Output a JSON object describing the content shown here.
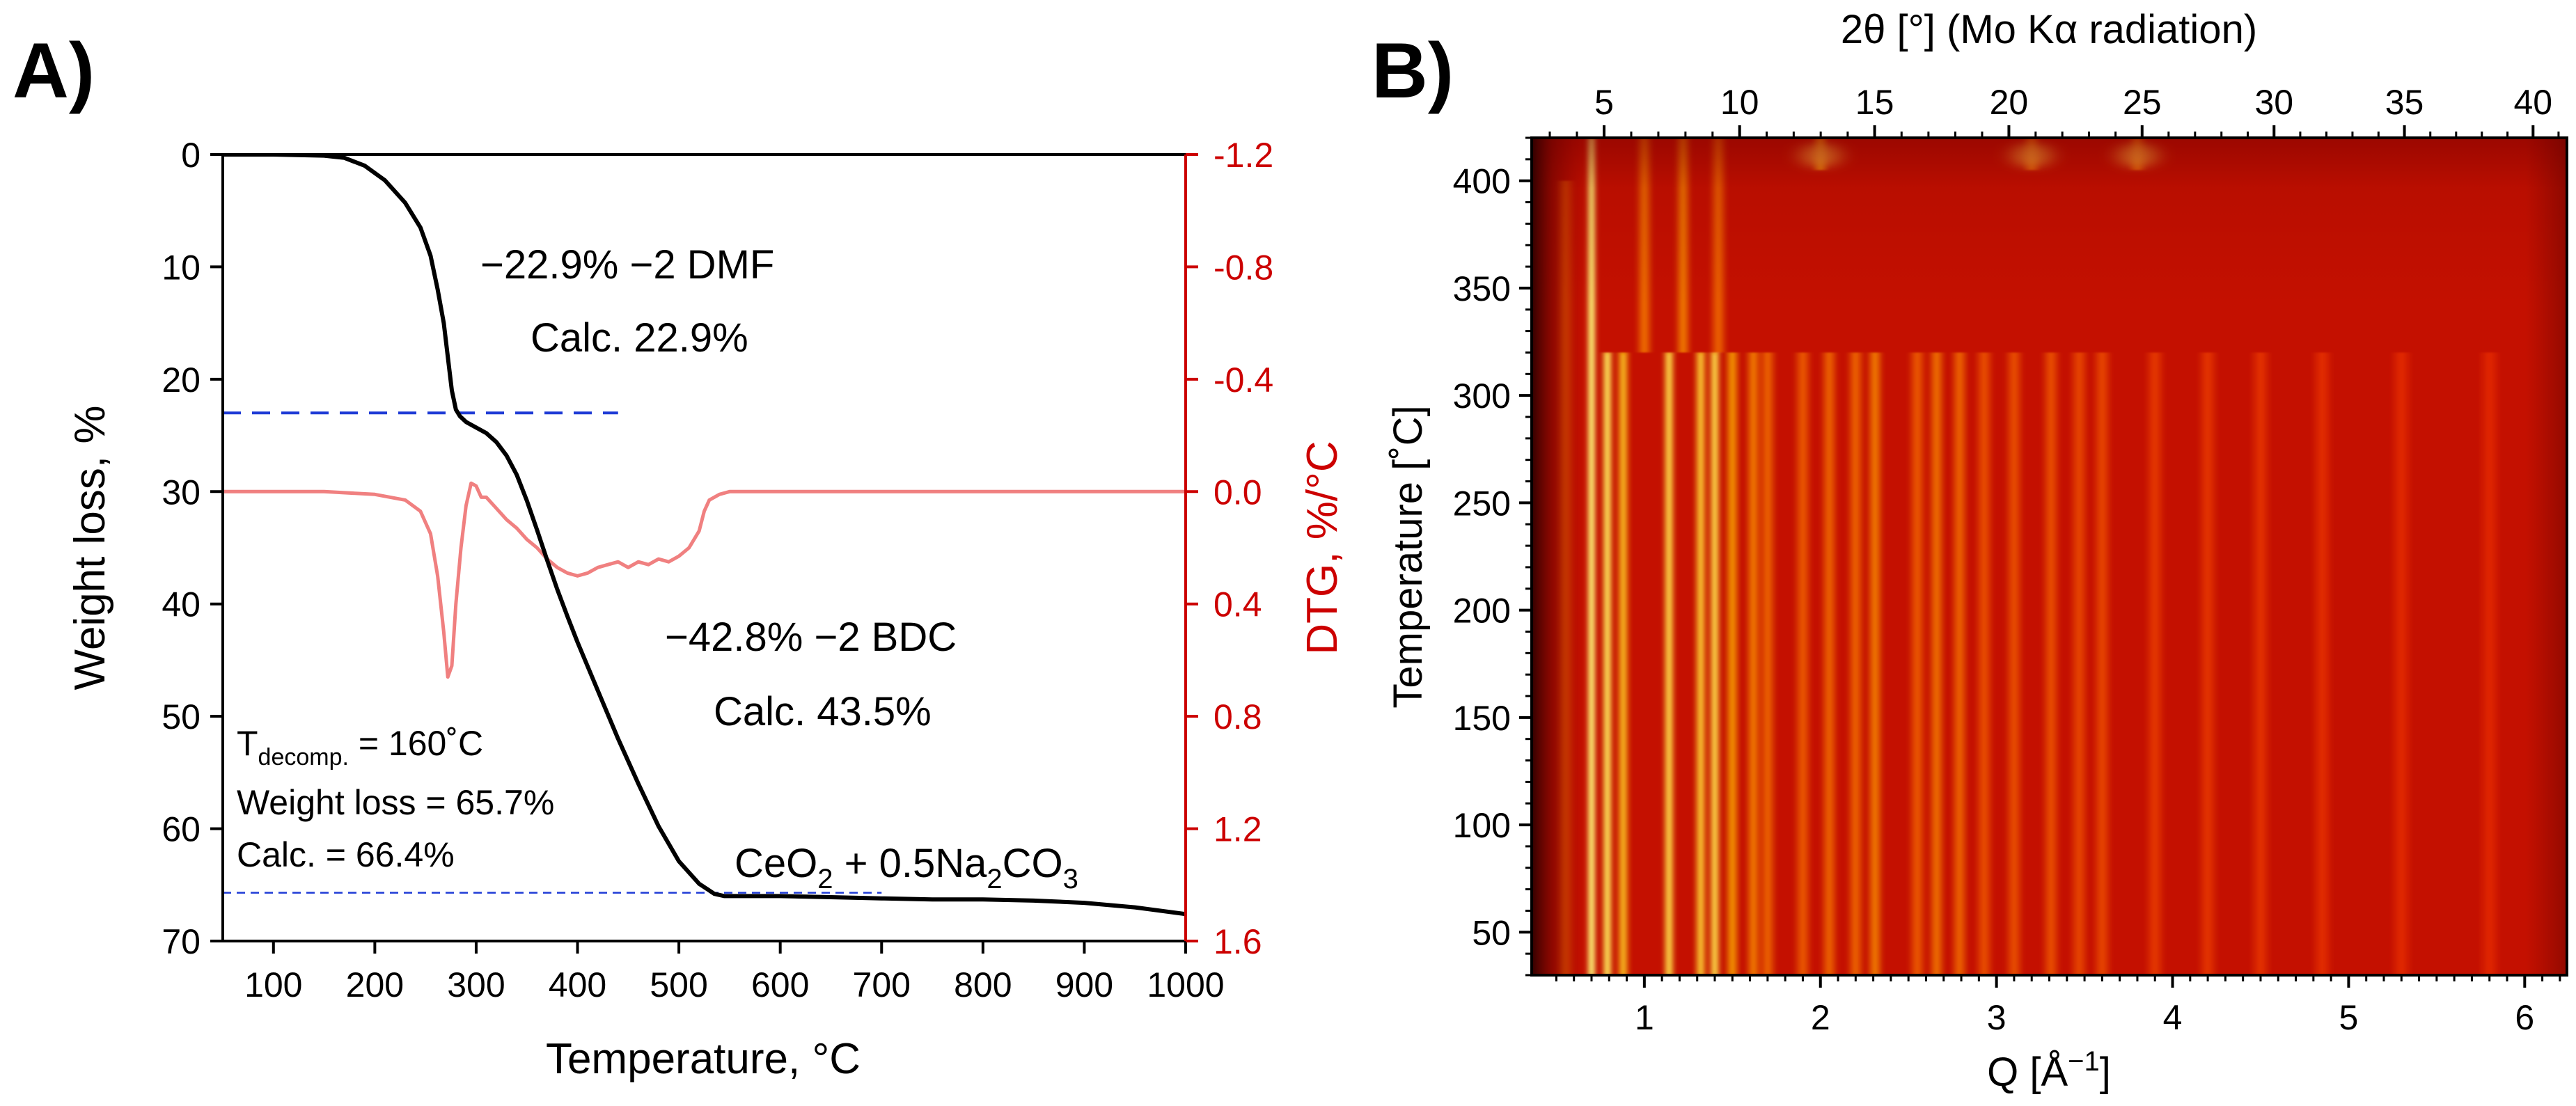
{
  "colors": {
    "axis": "#000000",
    "dtg_axis": "#cc0000",
    "tga_curve": "#000000",
    "dtg_curve": "#f08080",
    "guide_line": "#1f3bd6",
    "heatmap_base": "#c41000",
    "heatmap_dark": "#5a0000",
    "heatmap_hot": "#ffee55"
  },
  "panels": {
    "a_label": "A)",
    "b_label": "B)"
  },
  "chart_data": [
    {
      "type": "line",
      "panel": "A",
      "xlabel": "Temperature, °C",
      "ylabel": "Weight loss, %",
      "y2label": "DTG, %/°C",
      "xlim": [
        50,
        1000
      ],
      "ylim": [
        0,
        70
      ],
      "y_inverted": true,
      "y2lim": [
        -1.2,
        1.6
      ],
      "x_ticks": [
        100,
        200,
        300,
        400,
        500,
        600,
        700,
        800,
        900,
        1000
      ],
      "y_ticks": [
        0,
        10,
        20,
        30,
        40,
        50,
        60,
        70
      ],
      "y2_ticks": [
        -1.2,
        -0.8,
        -0.4,
        0.0,
        0.4,
        0.8,
        1.2,
        1.6
      ],
      "y2_tick_labels": [
        "-1.2",
        "-0.8",
        "-0.4",
        "0.0",
        "0.4",
        "0.8",
        "1.2",
        "1.6"
      ],
      "guide_lines": [
        {
          "y": 0,
          "x_from": 50,
          "x_to": 440,
          "style": "dashed"
        },
        {
          "y": 23,
          "x_from": 50,
          "x_to": 440,
          "style": "dashed"
        },
        {
          "y": 65.7,
          "x_from": 50,
          "x_to": 700,
          "style": "dashed-fine"
        }
      ],
      "series": [
        {
          "name": "TGA",
          "axis": "left",
          "x": [
            50,
            100,
            150,
            170,
            190,
            210,
            230,
            245,
            255,
            262,
            268,
            272,
            276,
            280,
            284,
            290,
            300,
            310,
            320,
            330,
            340,
            350,
            360,
            370,
            380,
            390,
            400,
            420,
            440,
            460,
            480,
            500,
            520,
            535,
            545,
            560,
            600,
            650,
            700,
            750,
            800,
            850,
            900,
            950,
            1000
          ],
          "y": [
            0,
            0,
            0.1,
            0.3,
            1,
            2.3,
            4.3,
            6.5,
            9,
            12,
            15,
            18,
            21,
            22.7,
            23.3,
            23.8,
            24.3,
            24.8,
            25.6,
            26.8,
            28.5,
            30.8,
            33.4,
            36.1,
            38.7,
            41.1,
            43.4,
            47.7,
            52,
            56,
            59.8,
            62.9,
            64.9,
            65.8,
            66.0,
            66.0,
            66.0,
            66.1,
            66.2,
            66.3,
            66.3,
            66.4,
            66.6,
            67.0,
            67.6
          ]
        },
        {
          "name": "DTG",
          "axis": "right",
          "x": [
            50,
            100,
            150,
            200,
            230,
            245,
            255,
            262,
            268,
            272,
            276,
            280,
            285,
            290,
            295,
            300,
            305,
            310,
            320,
            330,
            340,
            350,
            360,
            370,
            380,
            390,
            400,
            410,
            420,
            430,
            440,
            450,
            460,
            470,
            480,
            490,
            500,
            510,
            520,
            525,
            530,
            540,
            550,
            600,
            650,
            700,
            750,
            800,
            850,
            900,
            950,
            1000
          ],
          "y": [
            0.0,
            0.0,
            0.0,
            0.01,
            0.03,
            0.07,
            0.15,
            0.3,
            0.5,
            0.66,
            0.62,
            0.4,
            0.2,
            0.05,
            -0.03,
            -0.02,
            0.02,
            0.02,
            0.06,
            0.1,
            0.13,
            0.17,
            0.2,
            0.24,
            0.27,
            0.29,
            0.3,
            0.29,
            0.27,
            0.26,
            0.25,
            0.27,
            0.25,
            0.26,
            0.24,
            0.25,
            0.23,
            0.2,
            0.14,
            0.07,
            0.03,
            0.01,
            0.0,
            0.0,
            0.0,
            0.0,
            0.0,
            0.0,
            0.0,
            0.0,
            0.0,
            0.0
          ]
        }
      ],
      "annotations": {
        "dmf_loss": "−22.9%  −2 DMF",
        "dmf_calc": "Calc. 22.9%",
        "bdc_loss": "−42.8% −2 BDC",
        "bdc_calc": "Calc. 43.5%",
        "t_decomp_prefix": "T",
        "t_decomp_sub": "decomp.",
        "t_decomp_value": " = 160˚C",
        "weight_loss": "Weight loss = 65.7%",
        "calc_total": "Calc. = 66.4%",
        "residue_part1": "CeO",
        "residue_sub1": "2",
        "residue_part2": " + 0.5Na",
        "residue_sub2": "2",
        "residue_part3": "CO",
        "residue_sub3": "3"
      }
    },
    {
      "type": "heatmap",
      "panel": "B",
      "title_top": "2θ [°] (Mo Kα radiation)",
      "xlabel_parts": [
        "Q [Å",
        "−1",
        "]"
      ],
      "ylabel": "Temperature [˚C]",
      "xlim": [
        0.36,
        6.24
      ],
      "ylim": [
        30,
        420
      ],
      "x_ticks": [
        1,
        2,
        3,
        4,
        5,
        6
      ],
      "y_ticks": [
        50,
        100,
        150,
        200,
        250,
        300,
        350,
        400
      ],
      "top_ticks": [
        5,
        10,
        15,
        20,
        25,
        30,
        35,
        40
      ],
      "wavelength_A": 0.7107,
      "transition_temperature": 320,
      "background_top_band_from": 400,
      "peaks": [
        {
          "q": 0.55,
          "intensity": 0.35,
          "t_max": 400
        },
        {
          "q": 0.7,
          "intensity": 1.0,
          "t_max": 420
        },
        {
          "q": 0.79,
          "intensity": 0.9,
          "t_max": 320
        },
        {
          "q": 0.88,
          "intensity": 0.75,
          "t_max": 320
        },
        {
          "q": 1.14,
          "intensity": 0.85,
          "t_max": 320
        },
        {
          "q": 1.32,
          "intensity": 0.8,
          "t_max": 320
        },
        {
          "q": 1.4,
          "intensity": 0.85,
          "t_max": 320
        },
        {
          "q": 1.5,
          "intensity": 0.65,
          "t_max": 320
        },
        {
          "q": 1.62,
          "intensity": 0.55,
          "t_max": 320
        },
        {
          "q": 1.7,
          "intensity": 0.45,
          "t_max": 320
        },
        {
          "q": 1.9,
          "intensity": 0.4,
          "t_max": 320
        },
        {
          "q": 2.05,
          "intensity": 0.45,
          "t_max": 320
        },
        {
          "q": 2.2,
          "intensity": 0.45,
          "t_max": 320
        },
        {
          "q": 2.31,
          "intensity": 0.55,
          "t_max": 320
        },
        {
          "q": 2.55,
          "intensity": 0.4,
          "t_max": 320
        },
        {
          "q": 2.66,
          "intensity": 0.5,
          "t_max": 320
        },
        {
          "q": 2.79,
          "intensity": 0.45,
          "t_max": 320
        },
        {
          "q": 2.93,
          "intensity": 0.35,
          "t_max": 320
        },
        {
          "q": 3.1,
          "intensity": 0.35,
          "t_max": 320
        },
        {
          "q": 3.31,
          "intensity": 0.35,
          "t_max": 320
        },
        {
          "q": 3.47,
          "intensity": 0.3,
          "t_max": 320
        },
        {
          "q": 3.6,
          "intensity": 0.3,
          "t_max": 320
        },
        {
          "q": 3.9,
          "intensity": 0.22,
          "t_max": 320
        },
        {
          "q": 4.2,
          "intensity": 0.2,
          "t_max": 320
        },
        {
          "q": 4.5,
          "intensity": 0.18,
          "t_max": 320
        },
        {
          "q": 4.85,
          "intensity": 0.15,
          "t_max": 320
        },
        {
          "q": 5.3,
          "intensity": 0.12,
          "t_max": 320
        },
        {
          "q": 5.8,
          "intensity": 0.1,
          "t_max": 320
        },
        {
          "q": 1.0,
          "intensity": 0.5,
          "t_max": 420,
          "t_min": 320
        },
        {
          "q": 1.22,
          "intensity": 0.55,
          "t_max": 420,
          "t_min": 320
        },
        {
          "q": 1.42,
          "intensity": 0.45,
          "t_max": 420,
          "t_min": 320
        },
        {
          "q": 2.0,
          "intensity": 0.6,
          "t_max": 420,
          "t_min": 405
        },
        {
          "q": 3.2,
          "intensity": 0.45,
          "t_max": 420,
          "t_min": 405
        },
        {
          "q": 3.8,
          "intensity": 0.45,
          "t_max": 420,
          "t_min": 405
        }
      ]
    }
  ]
}
